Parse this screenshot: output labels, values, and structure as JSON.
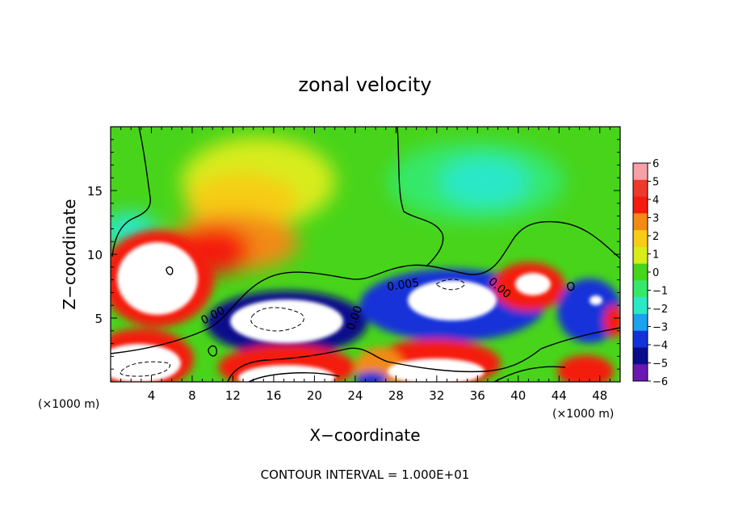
{
  "chart_data": {
    "type": "heatmap",
    "title": "zonal velocity",
    "xlabel": "X−coordinate",
    "ylabel": "Z−coordinate",
    "x_unit_left": "(×1000 m)",
    "x_unit_right": "(×1000 m)",
    "footer": "CONTOUR INTERVAL = 1.000E+01",
    "xlim": [
      0,
      50
    ],
    "ylim": [
      0,
      20
    ],
    "xticks": [
      4,
      8,
      12,
      16,
      20,
      24,
      28,
      32,
      36,
      40,
      44,
      48
    ],
    "yticks": [
      5,
      10,
      15
    ],
    "colorbar": {
      "ticks": [
        6,
        5,
        4,
        3,
        2,
        1,
        0,
        -1,
        -2,
        -3,
        -4,
        -5,
        -6
      ],
      "colors": [
        "#f6a0a8",
        "#ee3a2c",
        "#f41a10",
        "#f28a14",
        "#f6cc16",
        "#d8ec1a",
        "#48d41a",
        "#36e86a",
        "#2ce8c8",
        "#1aa2ee",
        "#1232d8",
        "#0a0c8c",
        "#6a18b2"
      ]
    },
    "contour_labels": [
      {
        "text": "0.00",
        "x": 11.5,
        "y": 4.6
      },
      {
        "text": "0.00",
        "x": 24.7,
        "y": 4.8
      },
      {
        "text": "0.005",
        "x": 28.2,
        "y": 7.6
      },
      {
        "text": "0.00",
        "x": 38.4,
        "y": 7.8
      }
    ]
  }
}
